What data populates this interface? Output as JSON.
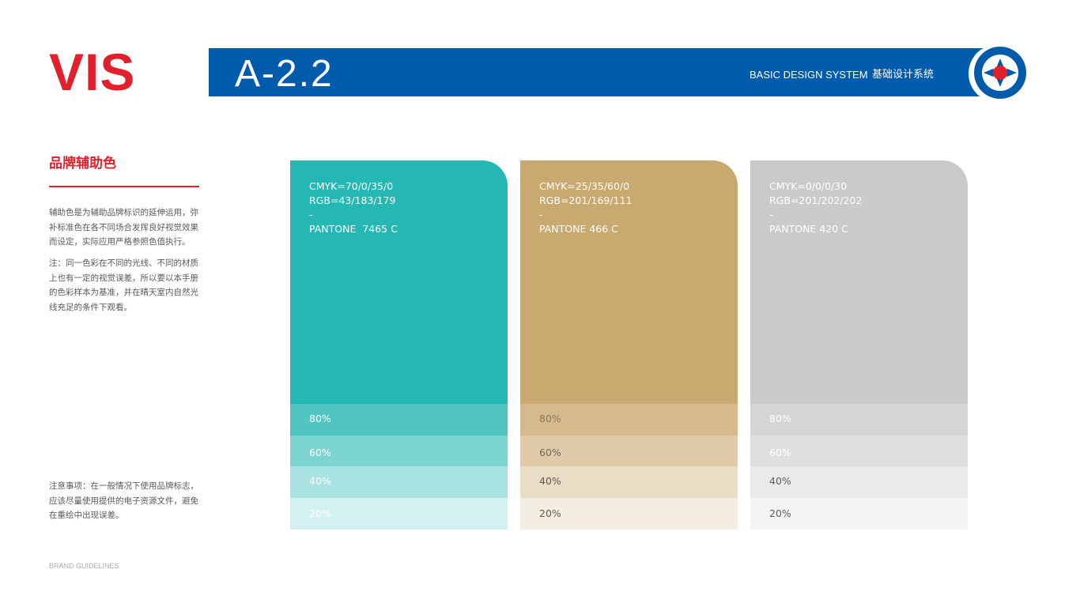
{
  "brand": {
    "logo_text": "VIS"
  },
  "header": {
    "page_code": "A-2.2",
    "subtitle_en": "BASIC DESIGN SYSTEM",
    "subtitle_cn": "基础设计系统",
    "bar_color": "#005bac",
    "emblem_icon": "target-icon"
  },
  "section": {
    "title": "品牌辅助色",
    "accent_color": "#e1202c",
    "paragraph1": "辅助色是为辅助品牌标识的延伸运用，弥补标准色在各不同场合发挥良好视觉效果而设定，实际应用严格参照色值执行。",
    "paragraph2": "注：同一色彩在不同的光线、不同的材质上也有一定的视觉误差，所以要以本手册的色彩样本为基准，并在晴天室内自然光线充足的条件下观看。",
    "paragraph3": "注意事项：在一般情况下使用品牌标志，应该尽量使用提供的电子资源文件，避免在重绘中出现误差。"
  },
  "swatches": [
    {
      "cmyk": "CMYK=70/0/35/0",
      "rgb": "RGB=43/183/179",
      "dash": "-",
      "pantone": "PANTONE  7465 C",
      "color": "#25b7b3",
      "tints": [
        {
          "label": "80%",
          "color": "#51c5c2",
          "text_color": "#ffffff"
        },
        {
          "label": "60%",
          "color": "#7cd4d1",
          "text_color": "#ffffff"
        },
        {
          "label": "40%",
          "color": "#a8e2e1",
          "text_color": "#ffffff"
        },
        {
          "label": "20%",
          "color": "#d3f1f0",
          "text_color": "#ffffff"
        }
      ]
    },
    {
      "cmyk": "CMYK=25/35/60/0",
      "rgb": "RGB=201/169/111",
      "dash": "-",
      "pantone": "PANTONE 466 C",
      "color": "#c9a96f",
      "tints": [
        {
          "label": "80%",
          "color": "#d4ba8c",
          "text_color": "#8a7a5e"
        },
        {
          "label": "60%",
          "color": "#dfcba9",
          "text_color": "#6f6659"
        },
        {
          "label": "40%",
          "color": "#e9ddc5",
          "text_color": "#5e5a54"
        },
        {
          "label": "20%",
          "color": "#f4eee2",
          "text_color": "#5e5a54"
        }
      ]
    },
    {
      "cmyk": "CMYK=0/0/0/30",
      "rgb": "RGB=201/202/202",
      "dash": "-",
      "pantone": "PANTONE 420 C",
      "color": "#c9cacb",
      "tints": [
        {
          "label": "80%",
          "color": "#d4d5d5",
          "text_color": "#ffffff"
        },
        {
          "label": "60%",
          "color": "#dfdfdf",
          "text_color": "#ffffff"
        },
        {
          "label": "40%",
          "color": "#e9eaea",
          "text_color": "#5e5e5e"
        },
        {
          "label": "20%",
          "color": "#f4f4f4",
          "text_color": "#5e5e5e"
        }
      ]
    }
  ],
  "footer": {
    "label": "BRAND GUIDELINES"
  }
}
